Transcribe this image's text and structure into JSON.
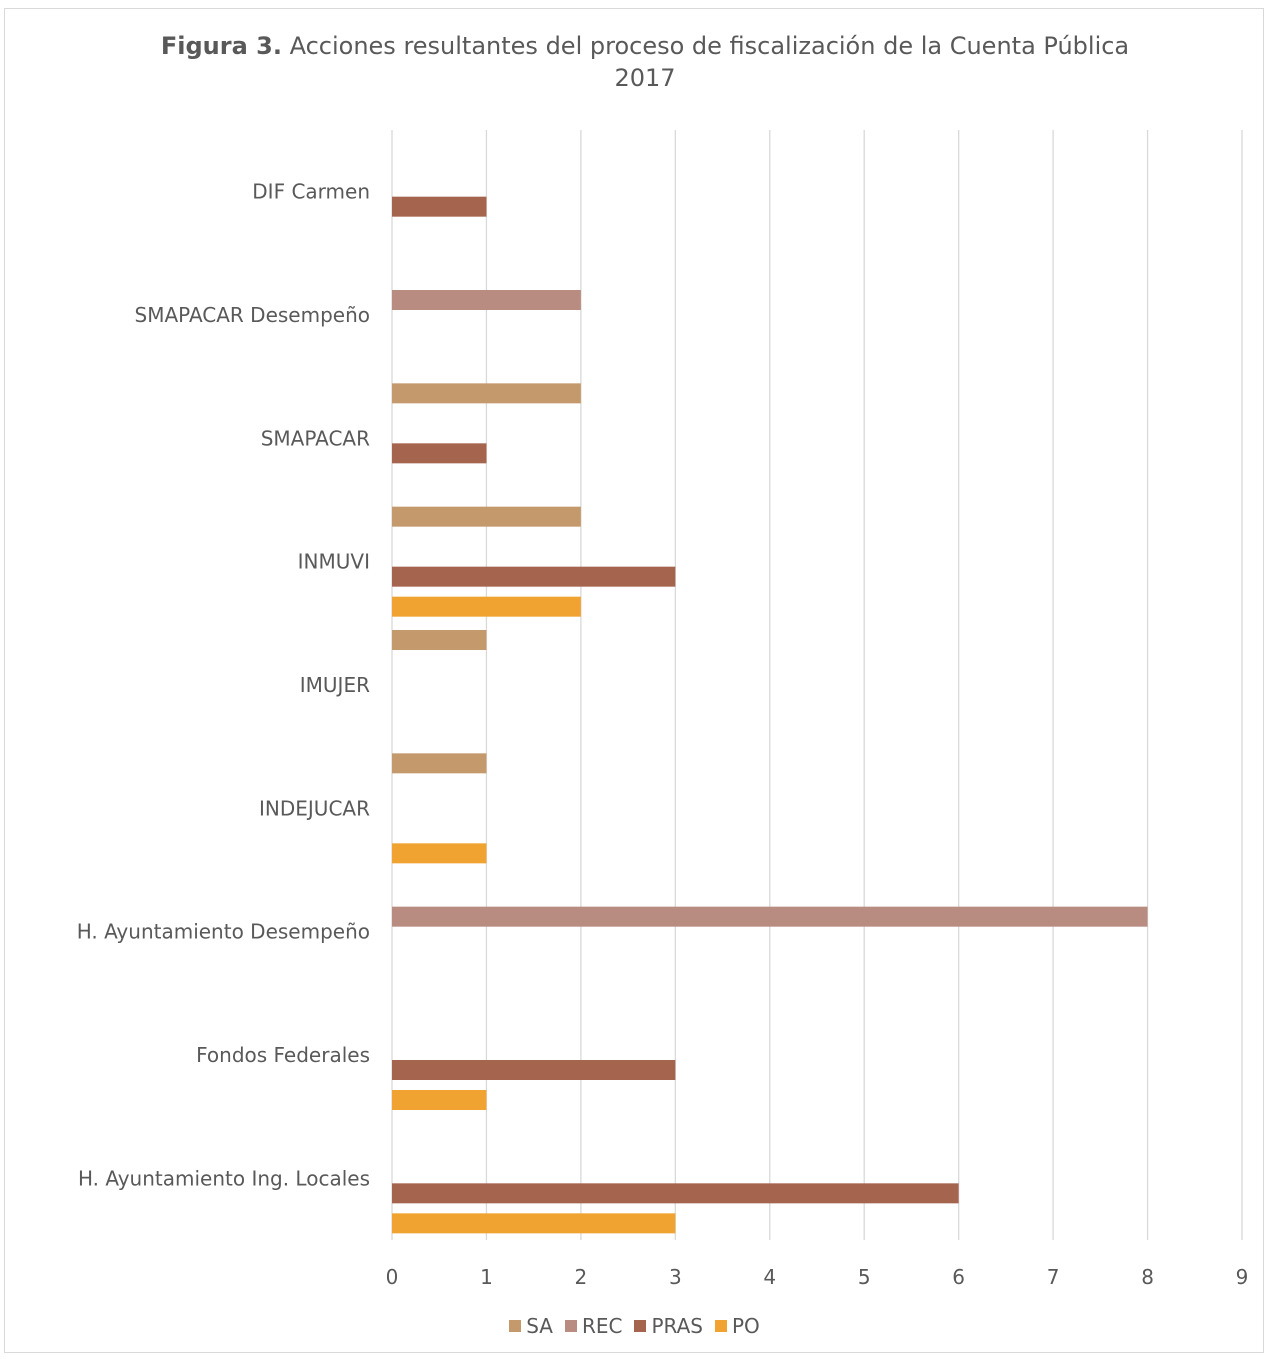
{
  "chart_data": {
    "type": "bar",
    "orientation": "horizontal",
    "title_prefix": "Figura 3.",
    "title": "Acciones resultantes del proceso de fiscalización de la Cuenta Pública 2017",
    "categories": [
      "DIF Carmen",
      "SMAPACAR Desempeño",
      "SMAPACAR",
      "INMUVI",
      "IMUJER",
      "INDEJUCAR",
      "H. Ayuntamiento Desempeño",
      "Fondos Federales",
      "H. Ayuntamiento Ing. Locales"
    ],
    "series": [
      {
        "name": "SA",
        "color": "#c49a6c",
        "values": [
          null,
          null,
          2,
          2,
          1,
          1,
          null,
          null,
          null
        ]
      },
      {
        "name": "REC",
        "color": "#b88c80",
        "values": [
          null,
          2,
          null,
          null,
          null,
          null,
          8,
          null,
          null
        ]
      },
      {
        "name": "PRAS",
        "color": "#a5644e",
        "values": [
          1,
          null,
          1,
          3,
          null,
          null,
          null,
          3,
          6
        ]
      },
      {
        "name": "PO",
        "color": "#f0a330",
        "values": [
          null,
          null,
          null,
          2,
          null,
          1,
          null,
          1,
          3
        ]
      }
    ],
    "xlim": [
      0,
      9
    ],
    "xticks": [
      0,
      1,
      2,
      3,
      4,
      5,
      6,
      7,
      8,
      9
    ],
    "grid": true,
    "legend_position": "bottom"
  }
}
